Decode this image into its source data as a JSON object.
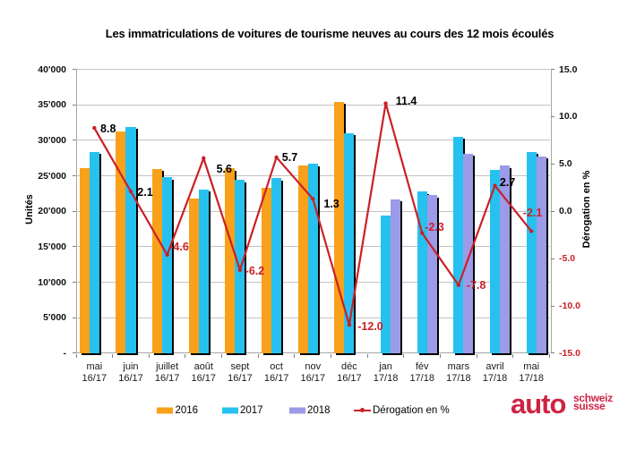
{
  "title": "Les immatriculations de voitures de tourisme neuves au cours des 12 mois écoulés",
  "y_axis": {
    "title": "Unités",
    "tick_labels": [
      "40'000",
      "35'000",
      "30'000",
      "25'000",
      "20'000",
      "15'000",
      "10'000",
      "5'000",
      "-"
    ]
  },
  "y2_axis": {
    "title": "Dérogation en %",
    "tick_labels": [
      "15.0",
      "10.0",
      "5.0",
      "0.0",
      "-5.0",
      "-10.0",
      "-15.0"
    ]
  },
  "x_axis": {
    "months": [
      "mai",
      "juin",
      "juillet",
      "août",
      "sept",
      "oct",
      "nov",
      "déc",
      "jan",
      "fév",
      "mars",
      "avril",
      "mai"
    ],
    "periods": [
      "16/17",
      "16/17",
      "16/17",
      "16/17",
      "16/17",
      "16/17",
      "16/17",
      "16/17",
      "17/18",
      "17/18",
      "17/18",
      "17/18",
      "17/18"
    ]
  },
  "legend": {
    "items": [
      {
        "label": "2016",
        "type": "box",
        "color": "#f9a11a"
      },
      {
        "label": "2017",
        "type": "box",
        "color": "#27c1f0"
      },
      {
        "label": "2018",
        "type": "box",
        "color": "#9b9be8"
      },
      {
        "label": "Dérogation en %",
        "type": "line",
        "color": "#cb2027"
      }
    ]
  },
  "logo": {
    "word": "auto",
    "line1": "schweiz",
    "line2": "suisse",
    "color": "#ce2443"
  },
  "colors": {
    "bar_2016": "#f9a11a",
    "bar_2017": "#27c1f0",
    "bar_2018": "#9b9be8",
    "line": "#cb2027",
    "negative_label": "#cb2027",
    "positive_label": "#000000",
    "gridline": "#c2c2c2",
    "axis": "#a6a6a6",
    "bar_shadow": "#000000"
  },
  "chart_data": {
    "type": "bar+line",
    "title": "Les immatriculations de voitures de tourisme neuves au cours des 12 mois écoulés",
    "categories": [
      "mai 16/17",
      "juin 16/17",
      "juillet 16/17",
      "août 16/17",
      "sept 16/17",
      "oct 16/17",
      "nov 16/17",
      "déc 16/17",
      "jan 17/18",
      "fév 17/18",
      "mars 17/18",
      "avril 17/18",
      "mai 17/18"
    ],
    "series": [
      {
        "name": "2016",
        "type": "bar",
        "color": "#f9a11a",
        "values": [
          26100,
          31300,
          26000,
          21850,
          26050,
          23300,
          26400,
          35450,
          null,
          null,
          null,
          null,
          null
        ]
      },
      {
        "name": "2017",
        "type": "bar",
        "color": "#27c1f0",
        "values": [
          28400,
          31900,
          24800,
          23100,
          24400,
          24650,
          26700,
          31000,
          19450,
          22750,
          30500,
          25800,
          28350
        ]
      },
      {
        "name": "2018",
        "type": "bar",
        "color": "#9b9be8",
        "values": [
          null,
          null,
          null,
          null,
          null,
          null,
          null,
          null,
          21700,
          22250,
          28100,
          26450,
          27750
        ]
      },
      {
        "name": "Dérogation en %",
        "type": "line",
        "color": "#cb2027",
        "axis": "right",
        "values": [
          8.8,
          2.1,
          -4.6,
          5.6,
          -6.2,
          5.7,
          1.3,
          -12.0,
          11.4,
          -2.3,
          -7.8,
          2.7,
          -2.1
        ]
      }
    ],
    "y_left": {
      "label": "Unités",
      "min": 0,
      "max": 40000,
      "step": 5000
    },
    "y_right": {
      "label": "Dérogation en %",
      "min": -15,
      "max": 15,
      "step": 5
    },
    "grid": true,
    "legend_position": "bottom"
  }
}
